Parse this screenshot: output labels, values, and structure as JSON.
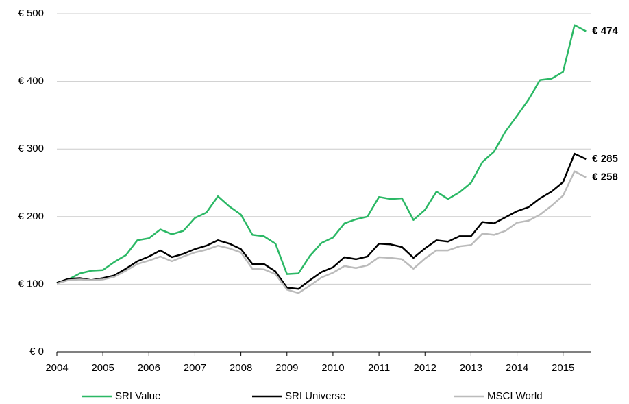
{
  "chart_data": {
    "type": "line",
    "x": [
      2004,
      2004.25,
      2004.5,
      2004.75,
      2005,
      2005.25,
      2005.5,
      2005.75,
      2006,
      2006.25,
      2006.5,
      2006.75,
      2007,
      2007.25,
      2007.5,
      2007.75,
      2008,
      2008.25,
      2008.5,
      2008.75,
      2009,
      2009.25,
      2009.5,
      2009.75,
      2010,
      2010.25,
      2010.5,
      2010.75,
      2011,
      2011.25,
      2011.5,
      2011.75,
      2012,
      2012.25,
      2012.5,
      2012.75,
      2013,
      2013.25,
      2013.5,
      2013.75,
      2014,
      2014.25,
      2014.5,
      2014.75,
      2015,
      2015.25,
      2015.5
    ],
    "series": [
      {
        "name": "SRI Value",
        "color": "#2bb865",
        "values": [
          102,
          107,
          116,
          120,
          121,
          133,
          143,
          165,
          168,
          181,
          174,
          179,
          198,
          206,
          230,
          215,
          203,
          173,
          171,
          160,
          115,
          116,
          142,
          161,
          169,
          190,
          196,
          200,
          229,
          226,
          227,
          195,
          210,
          237,
          226,
          236,
          250,
          281,
          296,
          326,
          349,
          373,
          402,
          404,
          414,
          483,
          474
        ],
        "value_labels": [
          null,
          null,
          null,
          null,
          null,
          null,
          null,
          null,
          null,
          null,
          null,
          null,
          null,
          null,
          null,
          null,
          null,
          null,
          null,
          null,
          null,
          null,
          null,
          null,
          null,
          null,
          null,
          null,
          null,
          null,
          null,
          null,
          null,
          null,
          null,
          null,
          null,
          null,
          null,
          null,
          null,
          null,
          null,
          null,
          null,
          null,
          "€ 474"
        ]
      },
      {
        "name": "SRI Universe",
        "color": "#000000",
        "values": [
          102,
          108,
          109,
          106,
          109,
          113,
          123,
          134,
          141,
          150,
          140,
          145,
          152,
          157,
          165,
          160,
          152,
          130,
          130,
          119,
          95,
          93,
          106,
          118,
          125,
          140,
          137,
          141,
          160,
          159,
          155,
          139,
          153,
          165,
          163,
          171,
          171,
          192,
          190,
          199,
          208,
          214,
          227,
          237,
          251,
          293,
          285
        ],
        "value_labels": [
          null,
          null,
          null,
          null,
          null,
          null,
          null,
          null,
          null,
          null,
          null,
          null,
          null,
          null,
          null,
          null,
          null,
          null,
          null,
          null,
          null,
          null,
          null,
          null,
          null,
          null,
          null,
          null,
          null,
          null,
          null,
          null,
          null,
          null,
          null,
          null,
          null,
          null,
          null,
          null,
          null,
          null,
          null,
          null,
          null,
          null,
          "€ 285"
        ]
      },
      {
        "name": "MSCI World",
        "color": "#bbbbbb",
        "values": [
          101,
          106,
          107,
          106,
          107,
          111,
          120,
          130,
          135,
          141,
          134,
          141,
          147,
          151,
          157,
          153,
          147,
          123,
          122,
          115,
          92,
          87,
          98,
          110,
          117,
          127,
          124,
          128,
          140,
          139,
          137,
          123,
          138,
          150,
          150,
          156,
          158,
          175,
          173,
          179,
          191,
          194,
          203,
          216,
          231,
          267,
          258
        ],
        "value_labels": [
          null,
          null,
          null,
          null,
          null,
          null,
          null,
          null,
          null,
          null,
          null,
          null,
          null,
          null,
          null,
          null,
          null,
          null,
          null,
          null,
          null,
          null,
          null,
          null,
          null,
          null,
          null,
          null,
          null,
          null,
          null,
          null,
          null,
          null,
          null,
          null,
          null,
          null,
          null,
          null,
          null,
          null,
          null,
          null,
          null,
          null,
          "€ 258"
        ]
      }
    ],
    "xlim": [
      2004,
      2015.6
    ],
    "xticks": [
      2004,
      2005,
      2006,
      2007,
      2008,
      2009,
      2010,
      2011,
      2012,
      2013,
      2014,
      2015
    ],
    "ylim": [
      0,
      500
    ],
    "yticks": [
      {
        "value": 0,
        "label": "€ 0"
      },
      {
        "value": 100,
        "label": "€ 100"
      },
      {
        "value": 200,
        "label": "€ 200"
      },
      {
        "value": 300,
        "label": "€ 300"
      },
      {
        "value": 400,
        "label": "€ 400"
      },
      {
        "value": 500,
        "label": "€ 500"
      }
    ],
    "grid": true,
    "legend": "bottom"
  }
}
